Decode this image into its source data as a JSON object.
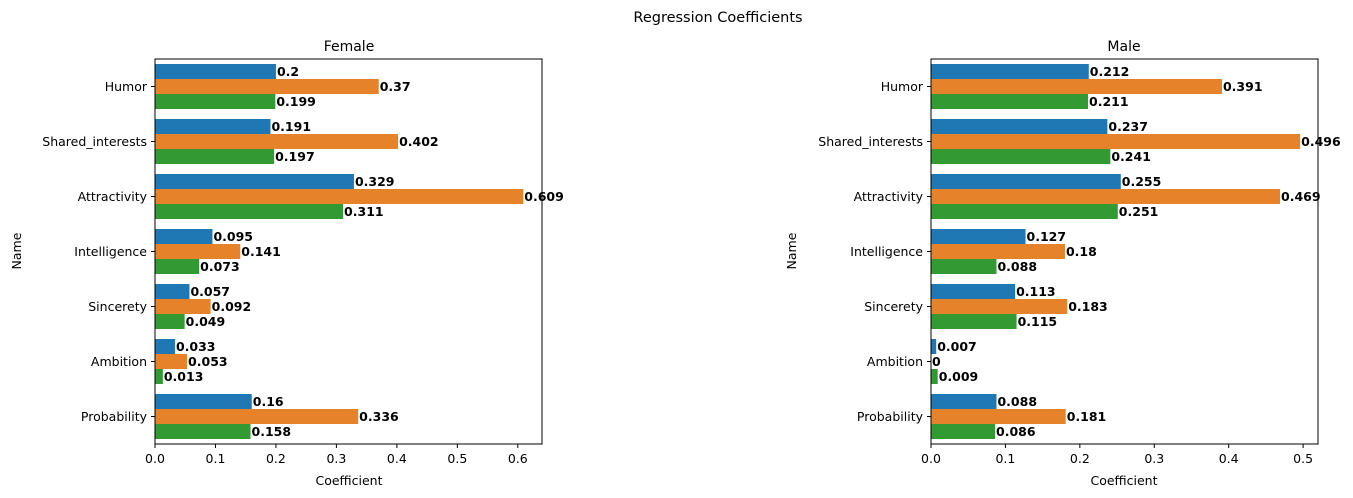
{
  "chart_data": {
    "type": "bar",
    "title": "Regression Coefficients",
    "orientation": "horizontal",
    "panels": [
      {
        "title": "Female",
        "xlabel": "Coefficient",
        "ylabel": "Name",
        "categories": [
          "Humor",
          "Shared_interests",
          "Attractivity",
          "Intelligence",
          "Sincerety",
          "Ambition",
          "Probability"
        ],
        "xlim": [
          0,
          0.64
        ],
        "xticks": [
          0.0,
          0.1,
          0.2,
          0.3,
          0.4,
          0.5,
          0.6
        ],
        "xtick_labels": [
          "0.0",
          "0.1",
          "0.2",
          "0.3",
          "0.4",
          "0.5",
          "0.6"
        ],
        "series": [
          {
            "color": "#1f77b4",
            "values": [
              0.2,
              0.191,
              0.329,
              0.095,
              0.057,
              0.033,
              0.16
            ],
            "labels": [
              "0.2",
              "0.191",
              "0.329",
              "0.095",
              "0.057",
              "0.033",
              "0.16"
            ]
          },
          {
            "color": "#e6832a",
            "values": [
              0.37,
              0.402,
              0.609,
              0.141,
              0.092,
              0.053,
              0.336
            ],
            "labels": [
              "0.37",
              "0.402",
              "0.609",
              "0.141",
              "0.092",
              "0.053",
              "0.336"
            ]
          },
          {
            "color": "#339933",
            "values": [
              0.199,
              0.197,
              0.311,
              0.073,
              0.049,
              0.013,
              0.158
            ],
            "labels": [
              "0.199",
              "0.197",
              "0.311",
              "0.073",
              "0.049",
              "0.013",
              "0.158"
            ]
          }
        ]
      },
      {
        "title": "Male",
        "xlabel": "Coefficient",
        "ylabel": "Name",
        "categories": [
          "Humor",
          "Shared_interests",
          "Attractivity",
          "Intelligence",
          "Sincerety",
          "Ambition",
          "Probability"
        ],
        "xlim": [
          0,
          0.52
        ],
        "xticks": [
          0.0,
          0.1,
          0.2,
          0.3,
          0.4,
          0.5
        ],
        "xtick_labels": [
          "0.0",
          "0.1",
          "0.2",
          "0.3",
          "0.4",
          "0.5"
        ],
        "series": [
          {
            "color": "#1f77b4",
            "values": [
              0.212,
              0.237,
              0.255,
              0.127,
              0.113,
              0.007,
              0.088
            ],
            "labels": [
              "0.212",
              "0.237",
              "0.255",
              "0.127",
              "0.113",
              "0.007",
              "0.088"
            ]
          },
          {
            "color": "#e6832a",
            "values": [
              0.391,
              0.496,
              0.469,
              0.18,
              0.183,
              0,
              0.181
            ],
            "labels": [
              "0.391",
              "0.496",
              "0.469",
              "0.18",
              "0.183",
              "0",
              "0.181"
            ]
          },
          {
            "color": "#339933",
            "values": [
              0.211,
              0.241,
              0.251,
              0.088,
              0.115,
              0.009,
              0.086
            ],
            "labels": [
              "0.211",
              "0.241",
              "0.251",
              "0.088",
              "0.115",
              "0.009",
              "0.086"
            ]
          }
        ]
      }
    ]
  }
}
